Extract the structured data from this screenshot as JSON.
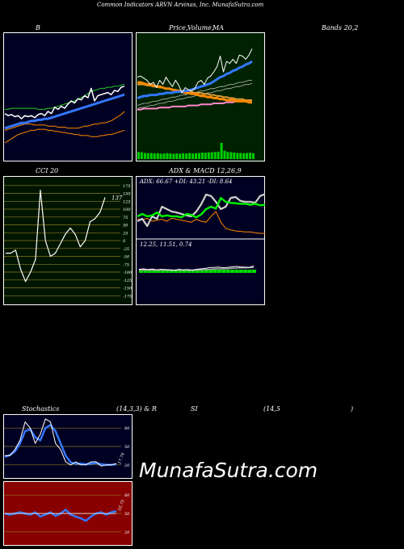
{
  "page_title": "Common Indicators ARVN Arvinas, Inc. MunafaSutra.com",
  "headers": {
    "bands_a": "B",
    "price_ma_a": "Price,",
    "price_ma_b": "Volume,",
    "price_ma_c": "MA",
    "bands_b": "Bands 20,2",
    "cci": "CCI 20",
    "adx_macd": "ADX  & MACD 12,26,9",
    "stoch_a": "Stochastics",
    "stoch_b": "(14,3,3) & R",
    "stoch_c": "SI",
    "stoch_d": "(14,5",
    "stoch_e": ")"
  },
  "adx_label": "ADX: 66.67 +DI: 43.21 -DI: 8.64",
  "macd_label": "12.25,  11.51,  0.74",
  "cci_value_label": "137",
  "stoch_value_label": "17.74",
  "rsi_value_label": "55.75",
  "brand": "MunafaSutra.com",
  "colors": {
    "bollinger_bg": "#000022",
    "price_bg": "#002200",
    "cci_bg": "#001500",
    "adx_bg": "#000022",
    "stoch_bg": "#000022",
    "rsi_bg": "#880000",
    "line_white": "#ffffff",
    "line_blue": "#3377ff",
    "line_green": "#22cc22",
    "line_orange": "#ff8800",
    "grid_olive": "#8a7a22"
  },
  "chart_data": [
    {
      "id": "bollinger",
      "type": "line",
      "series": [
        {
          "key": "price",
          "values": [
            0.38,
            0.36,
            0.37,
            0.35,
            0.36,
            0.33,
            0.36,
            0.35,
            0.36,
            0.34,
            0.37,
            0.38,
            0.36,
            0.4,
            0.38,
            0.44,
            0.42,
            0.45,
            0.43,
            0.47,
            0.5,
            0.48,
            0.52,
            0.51,
            0.55,
            0.53,
            0.62,
            0.5,
            0.55,
            0.56,
            0.57,
            0.58,
            0.56,
            0.6,
            0.59,
            0.63,
            0.64
          ]
        },
        {
          "key": "upper",
          "values": [
            0.42,
            0.42,
            0.43,
            0.43,
            0.43,
            0.43,
            0.43,
            0.43,
            0.43,
            0.43,
            0.42,
            0.42,
            0.42,
            0.43,
            0.43,
            0.44,
            0.45,
            0.46,
            0.47,
            0.48,
            0.49,
            0.5,
            0.52,
            0.53,
            0.55,
            0.57,
            0.59,
            0.6,
            0.61,
            0.62,
            0.62,
            0.63,
            0.63,
            0.64,
            0.64,
            0.65,
            0.66
          ]
        },
        {
          "key": "middle",
          "values": [
            0.24,
            0.25,
            0.26,
            0.27,
            0.28,
            0.29,
            0.29,
            0.3,
            0.31,
            0.31,
            0.32,
            0.32,
            0.33,
            0.33,
            0.34,
            0.35,
            0.36,
            0.37,
            0.38,
            0.39,
            0.4,
            0.41,
            0.42,
            0.43,
            0.44,
            0.45,
            0.46,
            0.47,
            0.48,
            0.49,
            0.5,
            0.51,
            0.52,
            0.53,
            0.54,
            0.55,
            0.56
          ]
        },
        {
          "key": "lower",
          "values": [
            0.22,
            0.23,
            0.24,
            0.25,
            0.26,
            0.27,
            0.28,
            0.28,
            0.28,
            0.27,
            0.27,
            0.27,
            0.27,
            0.26,
            0.26,
            0.26,
            0.25,
            0.25,
            0.25,
            0.24,
            0.24,
            0.24,
            0.24,
            0.25,
            0.26,
            0.26,
            0.27,
            0.28,
            0.28,
            0.29,
            0.29,
            0.3,
            0.31,
            0.33,
            0.35,
            0.37,
            0.4
          ]
        },
        {
          "key": "short_ma",
          "values": [
            0.1,
            0.12,
            0.14,
            0.16,
            0.18,
            0.19,
            0.2,
            0.21,
            0.22,
            0.22,
            0.23,
            0.23,
            0.23,
            0.22,
            0.22,
            0.21,
            0.21,
            0.2,
            0.2,
            0.19,
            0.19,
            0.18,
            0.18,
            0.17,
            0.17,
            0.17,
            0.16,
            0.16,
            0.16,
            0.17,
            0.17,
            0.18,
            0.18,
            0.19,
            0.2,
            0.21,
            0.22
          ]
        }
      ]
    },
    {
      "id": "price_volume",
      "type": "line",
      "series": [
        {
          "key": "price",
          "values": [
            0.65,
            0.66,
            0.64,
            0.62,
            0.58,
            0.6,
            0.55,
            0.62,
            0.58,
            0.65,
            0.6,
            0.56,
            0.62,
            0.57,
            0.5,
            0.55,
            0.53,
            0.52,
            0.54,
            0.6,
            0.62,
            0.58,
            0.64,
            0.66,
            0.7,
            0.75,
            0.85,
            0.7,
            0.8,
            0.78,
            0.82,
            0.78,
            0.86,
            0.85,
            0.82,
            0.86,
            0.92
          ]
        },
        {
          "key": "ema_blue",
          "values": [
            0.45,
            0.46,
            0.47,
            0.47,
            0.48,
            0.48,
            0.48,
            0.49,
            0.49,
            0.5,
            0.5,
            0.5,
            0.51,
            0.51,
            0.51,
            0.52,
            0.52,
            0.53,
            0.54,
            0.55,
            0.56,
            0.57,
            0.58,
            0.59,
            0.61,
            0.63,
            0.65,
            0.66,
            0.68,
            0.69,
            0.71,
            0.72,
            0.74,
            0.75,
            0.77,
            0.78,
            0.8
          ]
        },
        {
          "key": "ma_orange",
          "values": [
            0.6,
            0.6,
            0.59,
            0.58,
            0.58,
            0.57,
            0.56,
            0.56,
            0.55,
            0.54,
            0.54,
            0.53,
            0.52,
            0.52,
            0.51,
            0.5,
            0.5,
            0.49,
            0.49,
            0.48,
            0.47,
            0.47,
            0.46,
            0.46,
            0.45,
            0.45,
            0.44,
            0.44,
            0.43,
            0.43,
            0.43,
            0.42,
            0.42,
            0.42,
            0.42,
            0.41,
            0.41
          ]
        },
        {
          "key": "ma_orange2",
          "values": [
            0.58,
            0.58,
            0.58,
            0.57,
            0.57,
            0.56,
            0.56,
            0.55,
            0.55,
            0.54,
            0.54,
            0.53,
            0.53,
            0.52,
            0.52,
            0.52,
            0.51,
            0.51,
            0.5,
            0.5,
            0.5,
            0.49,
            0.49,
            0.48,
            0.48,
            0.47,
            0.47,
            0.46,
            0.46,
            0.45,
            0.45,
            0.44,
            0.44,
            0.44,
            0.43,
            0.43,
            0.43
          ]
        },
        {
          "key": "ma_pink",
          "values": [
            0.34,
            0.34,
            0.35,
            0.35,
            0.35,
            0.35,
            0.35,
            0.36,
            0.36,
            0.36,
            0.36,
            0.37,
            0.37,
            0.37,
            0.37,
            0.37,
            0.38,
            0.38,
            0.38,
            0.38,
            0.39,
            0.39,
            0.39,
            0.39,
            0.4,
            0.4,
            0.4,
            0.4,
            0.41,
            0.41,
            0.41,
            0.42,
            0.42,
            0.42,
            0.42,
            0.43,
            0.43
          ]
        },
        {
          "key": "ma_gray",
          "values": [
            0.38,
            0.39,
            0.4,
            0.4,
            0.41,
            0.42,
            0.42,
            0.43,
            0.44,
            0.44,
            0.45,
            0.46,
            0.46,
            0.47,
            0.48,
            0.48,
            0.49,
            0.5,
            0.5,
            0.51,
            0.52,
            0.52,
            0.53,
            0.54,
            0.54,
            0.55,
            0.56,
            0.56,
            0.57,
            0.58,
            0.58,
            0.59,
            0.6,
            0.6,
            0.61,
            0.62,
            0.62
          ]
        },
        {
          "key": "ma_gray2",
          "values": [
            0.35,
            0.36,
            0.36,
            0.37,
            0.38,
            0.38,
            0.39,
            0.4,
            0.4,
            0.41,
            0.42,
            0.42,
            0.43,
            0.44,
            0.44,
            0.45,
            0.46,
            0.46,
            0.47,
            0.48,
            0.48,
            0.49,
            0.5,
            0.5,
            0.51,
            0.52,
            0.52,
            0.53,
            0.54,
            0.54,
            0.55,
            0.56,
            0.56,
            0.57,
            0.58,
            0.58,
            0.59
          ]
        },
        {
          "key": "volume",
          "values": [
            0.3,
            0.28,
            0.22,
            0.2,
            0.22,
            0.18,
            0.2,
            0.16,
            0.18,
            0.2,
            0.18,
            0.15,
            0.18,
            0.16,
            0.2,
            0.18,
            0.22,
            0.18,
            0.2,
            0.22,
            0.25,
            0.24,
            0.26,
            0.28,
            0.3,
            0.32,
            1.0,
            0.4,
            0.3,
            0.28,
            0.25,
            0.22,
            0.22,
            0.2,
            0.22,
            0.24,
            0.2
          ]
        }
      ]
    },
    {
      "id": "cci",
      "type": "line",
      "yticks": [
        175,
        150,
        125,
        100,
        75,
        50,
        25,
        0,
        -25,
        -50,
        -75,
        -100,
        -125,
        -150,
        -175
      ],
      "ylim": [
        -200,
        200
      ],
      "values": [
        -40,
        -40,
        -30,
        -90,
        -130,
        -100,
        -60,
        160,
        0,
        -50,
        -40,
        -10,
        20,
        40,
        20,
        -20,
        0,
        60,
        70,
        90,
        137
      ]
    },
    {
      "id": "adx",
      "type": "line",
      "series": [
        {
          "key": "adx_white",
          "values": [
            0.3,
            0.35,
            0.2,
            0.4,
            0.35,
            0.6,
            0.55,
            0.5,
            0.48,
            0.45,
            0.42,
            0.4,
            0.5,
            0.65,
            0.85,
            0.82,
            0.7,
            0.55,
            0.6,
            0.78,
            0.8,
            0.72,
            0.7,
            0.7,
            0.68,
            0.82,
            0.86
          ]
        },
        {
          "key": "plus_di",
          "values": [
            0.4,
            0.45,
            0.4,
            0.42,
            0.48,
            0.4,
            0.42,
            0.4,
            0.4,
            0.38,
            0.45,
            0.43,
            0.38,
            0.44,
            0.55,
            0.6,
            0.56,
            0.78,
            0.7,
            0.68,
            0.67,
            0.66,
            0.66,
            0.64,
            0.66,
            0.63,
            0.64
          ]
        },
        {
          "key": "minus_di",
          "values": [
            0.35,
            0.33,
            0.36,
            0.3,
            0.32,
            0.34,
            0.3,
            0.36,
            0.34,
            0.32,
            0.3,
            0.28,
            0.34,
            0.3,
            0.28,
            0.4,
            0.5,
            0.28,
            0.15,
            0.12,
            0.1,
            0.09,
            0.08,
            0.08,
            0.06,
            0.05,
            0.05
          ]
        }
      ]
    },
    {
      "id": "macd",
      "type": "line",
      "series": [
        {
          "key": "macd",
          "values": [
            0.48,
            0.5,
            0.47,
            0.49,
            0.46,
            0.48,
            0.47,
            0.46,
            0.44,
            0.48,
            0.46,
            0.47,
            0.45,
            0.48,
            0.5,
            0.52,
            0.55,
            0.56,
            0.57,
            0.55,
            0.56,
            0.58,
            0.6,
            0.58,
            0.57,
            0.56,
            0.62
          ]
        },
        {
          "key": "signal",
          "values": [
            0.45,
            0.46,
            0.45,
            0.46,
            0.45,
            0.46,
            0.45,
            0.45,
            0.44,
            0.45,
            0.45,
            0.45,
            0.44,
            0.45,
            0.46,
            0.47,
            0.48,
            0.49,
            0.5,
            0.5,
            0.51,
            0.52,
            0.53,
            0.54,
            0.54,
            0.55,
            0.56
          ]
        },
        {
          "key": "histogram",
          "values": [
            0.12,
            0.12,
            0.12,
            0.12,
            0.12,
            0.12,
            0.12,
            0.12,
            0.12,
            0.12,
            0.12,
            0.12,
            0.12,
            0.12,
            0.12,
            0.12,
            0.12,
            0.12,
            0.12,
            0.12,
            0.12,
            0.12,
            0.12,
            0.12,
            0.12,
            0.12,
            0.12
          ]
        }
      ]
    },
    {
      "id": "stochastics",
      "type": "line",
      "yticks": [
        80,
        50,
        20
      ],
      "ylim": [
        0,
        100
      ],
      "series": [
        {
          "key": "fast",
          "values": [
            35,
            35,
            45,
            60,
            90,
            80,
            55,
            70,
            95,
            90,
            55,
            45,
            25,
            20,
            25,
            20,
            20,
            25,
            25,
            18,
            20,
            20,
            22
          ]
        },
        {
          "key": "slow",
          "values": [
            33,
            36,
            42,
            55,
            75,
            78,
            65,
            60,
            80,
            85,
            75,
            55,
            35,
            24,
            22,
            22,
            21,
            22,
            23,
            21,
            20,
            20,
            21
          ]
        }
      ]
    },
    {
      "id": "rsi",
      "type": "line",
      "yticks": [
        80,
        50,
        20
      ],
      "ylim": [
        0,
        100
      ],
      "series": [
        {
          "key": "rsi",
          "values": [
            50,
            48,
            50,
            52,
            50,
            48,
            52,
            45,
            48,
            52,
            46,
            50,
            56,
            48,
            45,
            42,
            38,
            45,
            50,
            52,
            48,
            52,
            54
          ]
        },
        {
          "key": "rsi_avg",
          "values": [
            50,
            50,
            50,
            50,
            50,
            50,
            50,
            50,
            50,
            50,
            50,
            50,
            50,
            50,
            50,
            50,
            50,
            50,
            50,
            50,
            50,
            50,
            50
          ]
        }
      ]
    }
  ]
}
